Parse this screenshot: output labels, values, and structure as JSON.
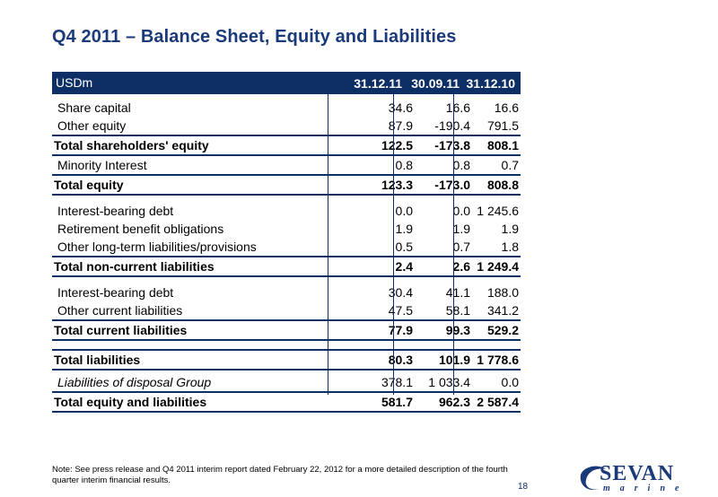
{
  "title": "Q4 2011 – Balance Sheet, Equity and Liabilities",
  "table": {
    "unit_label": "USDm",
    "columns": [
      "31.12.11",
      "30.09.11",
      "31.12.10"
    ],
    "rows": [
      {
        "label": "Share capital",
        "values": [
          "34.6",
          "16.6",
          "16.6"
        ]
      },
      {
        "label": "Other equity",
        "values": [
          "87.9",
          "-190.4",
          "791.5"
        ]
      },
      {
        "label": "Total shareholders' equity",
        "values": [
          "122.5",
          "-173.8",
          "808.1"
        ]
      },
      {
        "label": "Minority Interest",
        "values": [
          "0.8",
          "0.8",
          "0.7"
        ]
      },
      {
        "label": "Total equity",
        "values": [
          "123.3",
          "-173.0",
          "808.8"
        ]
      },
      {
        "label": "Interest-bearing debt",
        "values": [
          "0.0",
          "0.0",
          "1 245.6"
        ]
      },
      {
        "label": "Retirement benefit obligations",
        "values": [
          "1.9",
          "1.9",
          "1.9"
        ]
      },
      {
        "label": "Other long-term liabilities/provisions",
        "values": [
          "0.5",
          "0.7",
          "1.8"
        ]
      },
      {
        "label": "Total non-current liabilities",
        "values": [
          "2.4",
          "2.6",
          "1 249.4"
        ]
      },
      {
        "label": "Interest-bearing debt",
        "values": [
          "30.4",
          "41.1",
          "188.0"
        ]
      },
      {
        "label": "Other current liabilities",
        "values": [
          "47.5",
          "58.1",
          "341.2"
        ]
      },
      {
        "label": "Total current liabilities",
        "values": [
          "77.9",
          "99.3",
          "529.2"
        ]
      },
      {
        "label": "Total liabilities",
        "values": [
          "80.3",
          "101.9",
          "1 778.6"
        ]
      },
      {
        "label": "Liabilities of disposal Group",
        "values": [
          "378.1",
          "1 033.4",
          "0.0"
        ]
      },
      {
        "label": "Total equity and liabilities",
        "values": [
          "581.7",
          "962.3",
          "2 587.4"
        ]
      }
    ]
  },
  "note": "Note: See press release and Q4 2011 interim report dated February 22, 2012 for a more detailed description of the fourth quarter interim financial results.",
  "page_number": "18",
  "logo": {
    "name": "SEVAN",
    "sub": "marine"
  },
  "colors": {
    "brand": "#0d2f66",
    "title": "#1b3a7a"
  }
}
